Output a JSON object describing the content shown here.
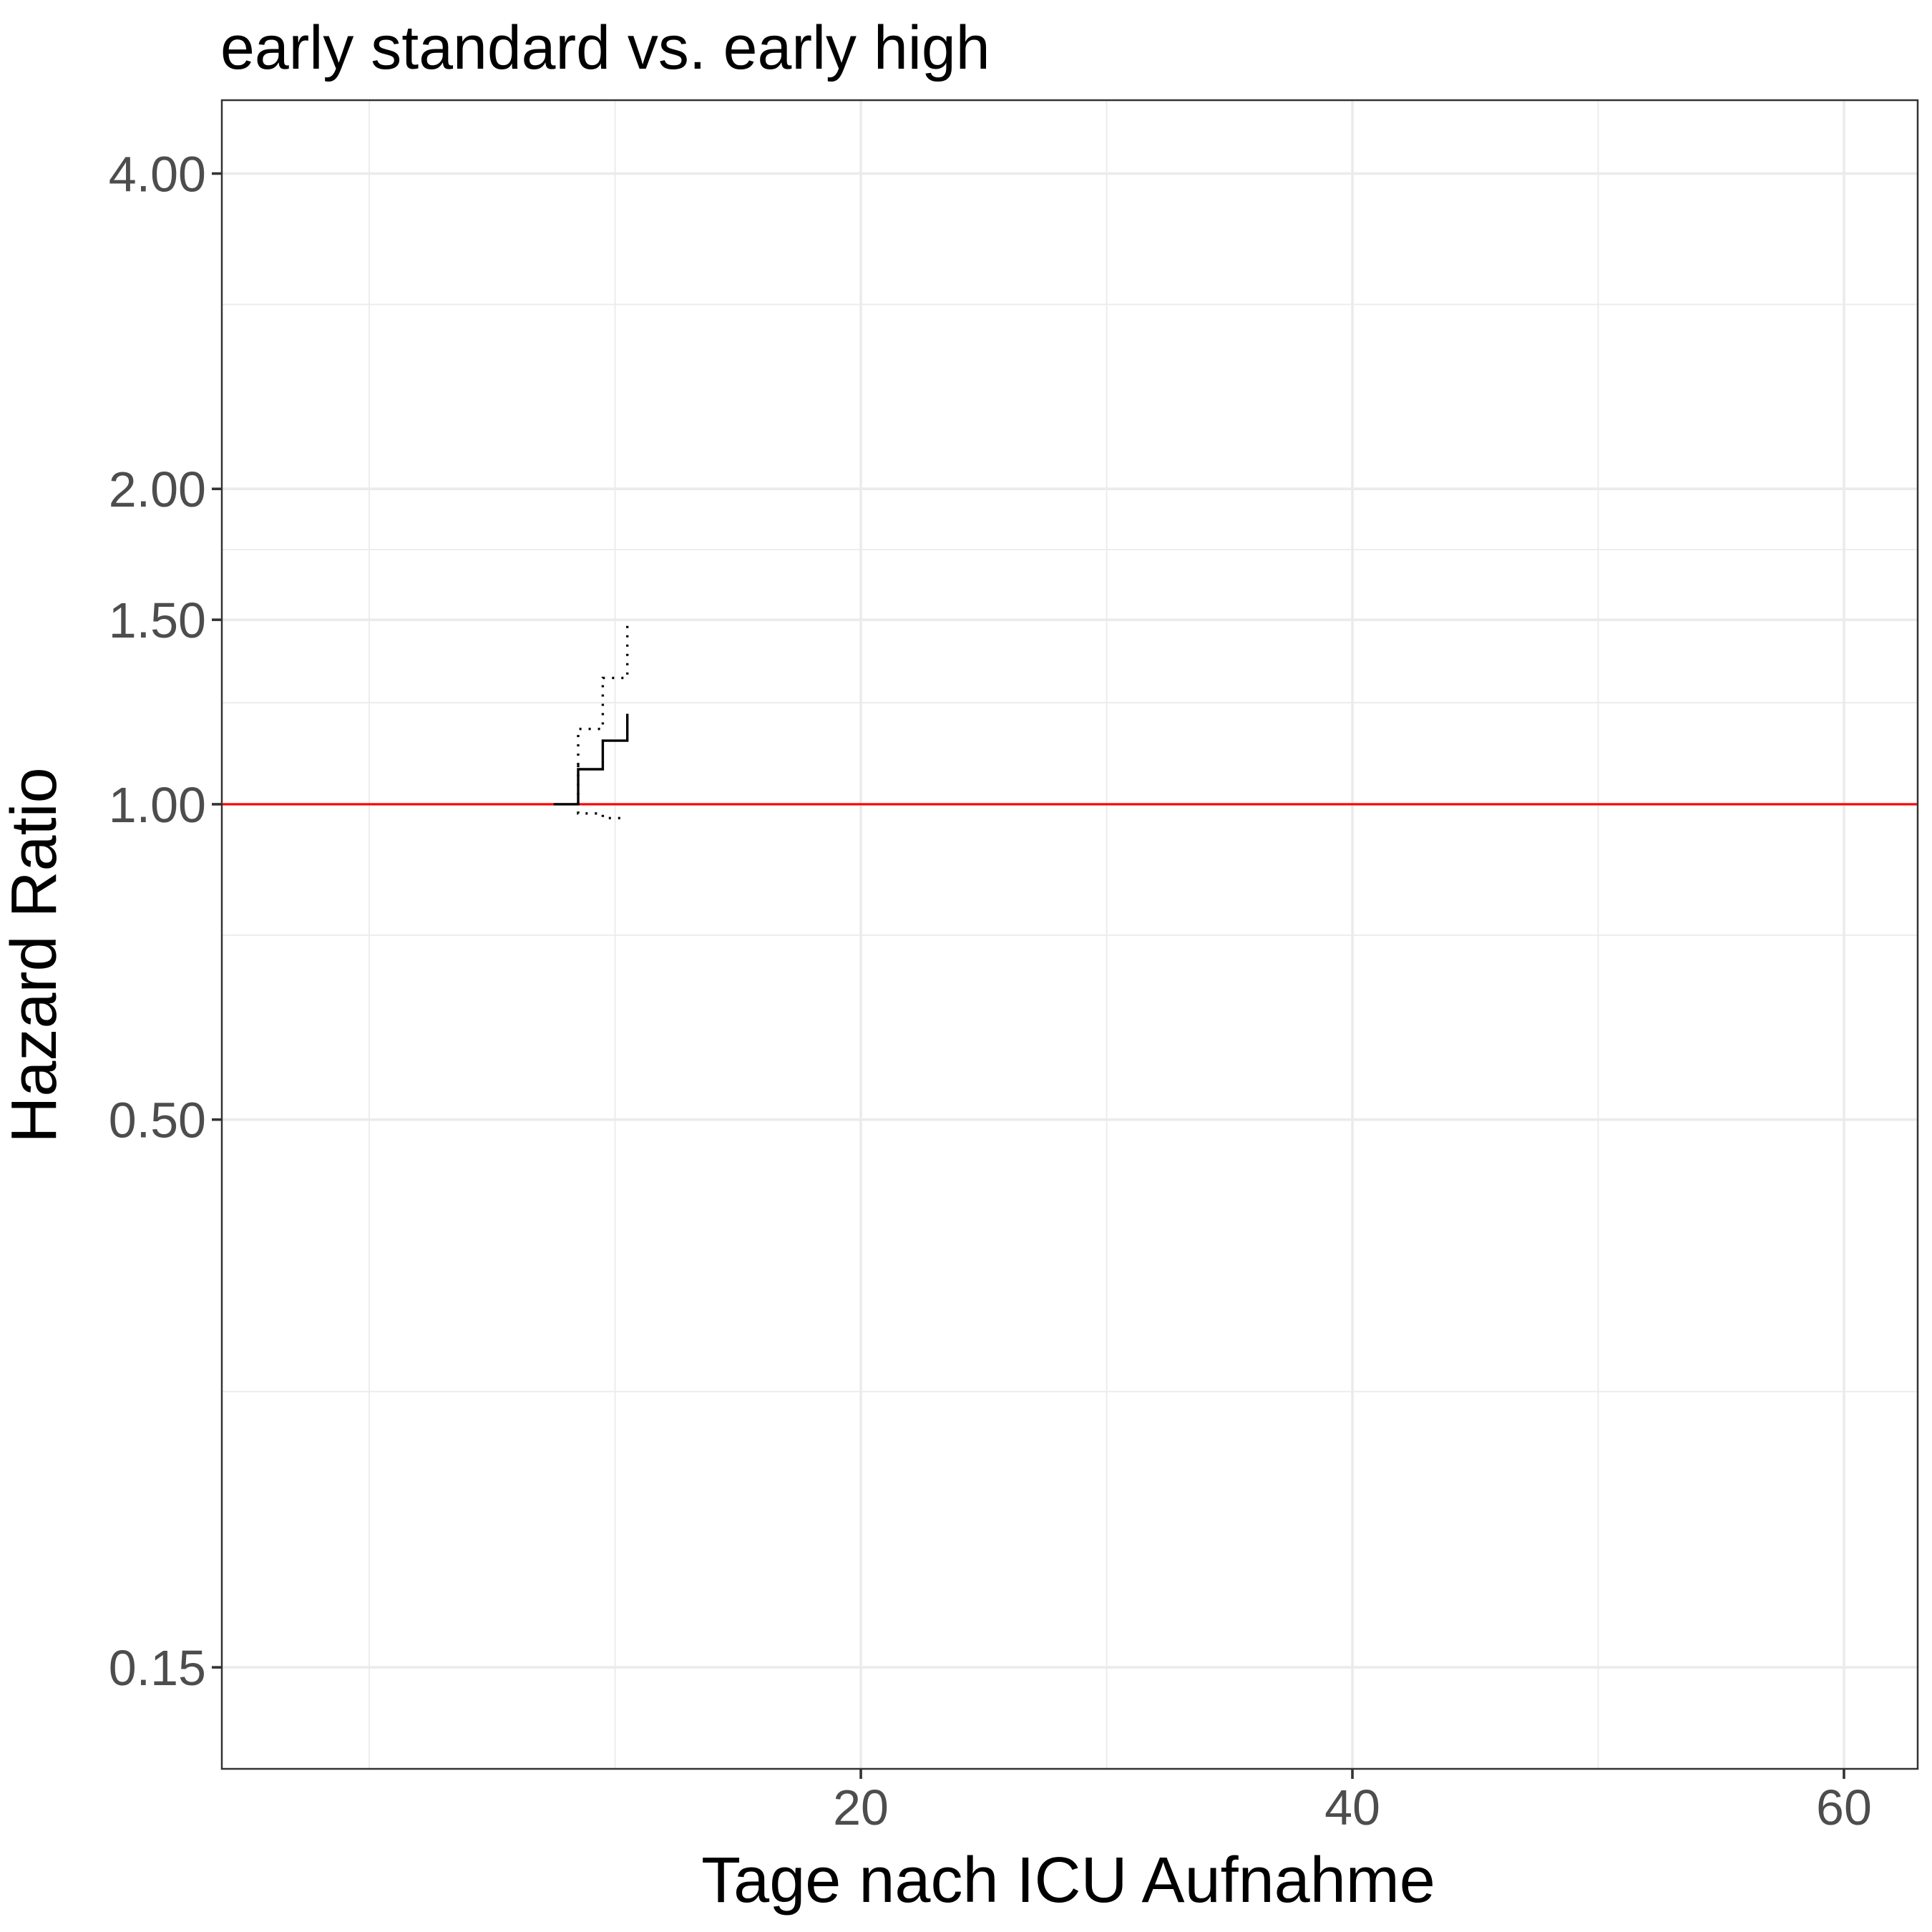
{
  "chart_data": {
    "type": "line",
    "title": "early standard vs. early high",
    "xlabel": "Tage nach ICU Aufnahme",
    "ylabel": "Hazard Ratio",
    "xlim": [
      -6,
      63
    ],
    "ylim": [
      0.12,
      4.7
    ],
    "yscale": "log",
    "x_ticks": [
      20,
      40,
      60
    ],
    "x_tick_labels": [
      "20",
      "40",
      "60"
    ],
    "x_minor_ticks": [
      0,
      10,
      30,
      50
    ],
    "y_ticks": [
      0.15,
      0.5,
      1.0,
      1.5,
      2.0,
      4.0
    ],
    "y_tick_labels": [
      "0.15",
      "0.50",
      "1.00",
      "1.50",
      "2.00",
      "4.00"
    ],
    "y_minor_ticks": [
      0.275,
      0.75,
      1.25,
      1.75,
      3.0
    ],
    "grid": true,
    "reference_line": {
      "y": 1.0,
      "color": "#ff0000"
    },
    "series": [
      {
        "style": "solid",
        "color": "#000000",
        "x": [
          7.5,
          8.5,
          8.5,
          9.5,
          9.5,
          10.5,
          10.5
        ],
        "y": [
          1.0,
          1.0,
          1.08,
          1.08,
          1.15,
          1.15,
          1.22
        ]
      },
      {
        "style": "dotted",
        "color": "#000000",
        "x": [
          8.5,
          8.5,
          9.5,
          9.5,
          10.5,
          10.5
        ],
        "y": [
          1.09,
          1.18,
          1.18,
          1.32,
          1.32,
          1.48
        ]
      },
      {
        "style": "dotted",
        "color": "#000000",
        "x": [
          8.5,
          8.5,
          9.5,
          9.5,
          10.5
        ],
        "y": [
          1.09,
          0.98,
          0.98,
          0.97,
          0.97
        ]
      }
    ]
  }
}
